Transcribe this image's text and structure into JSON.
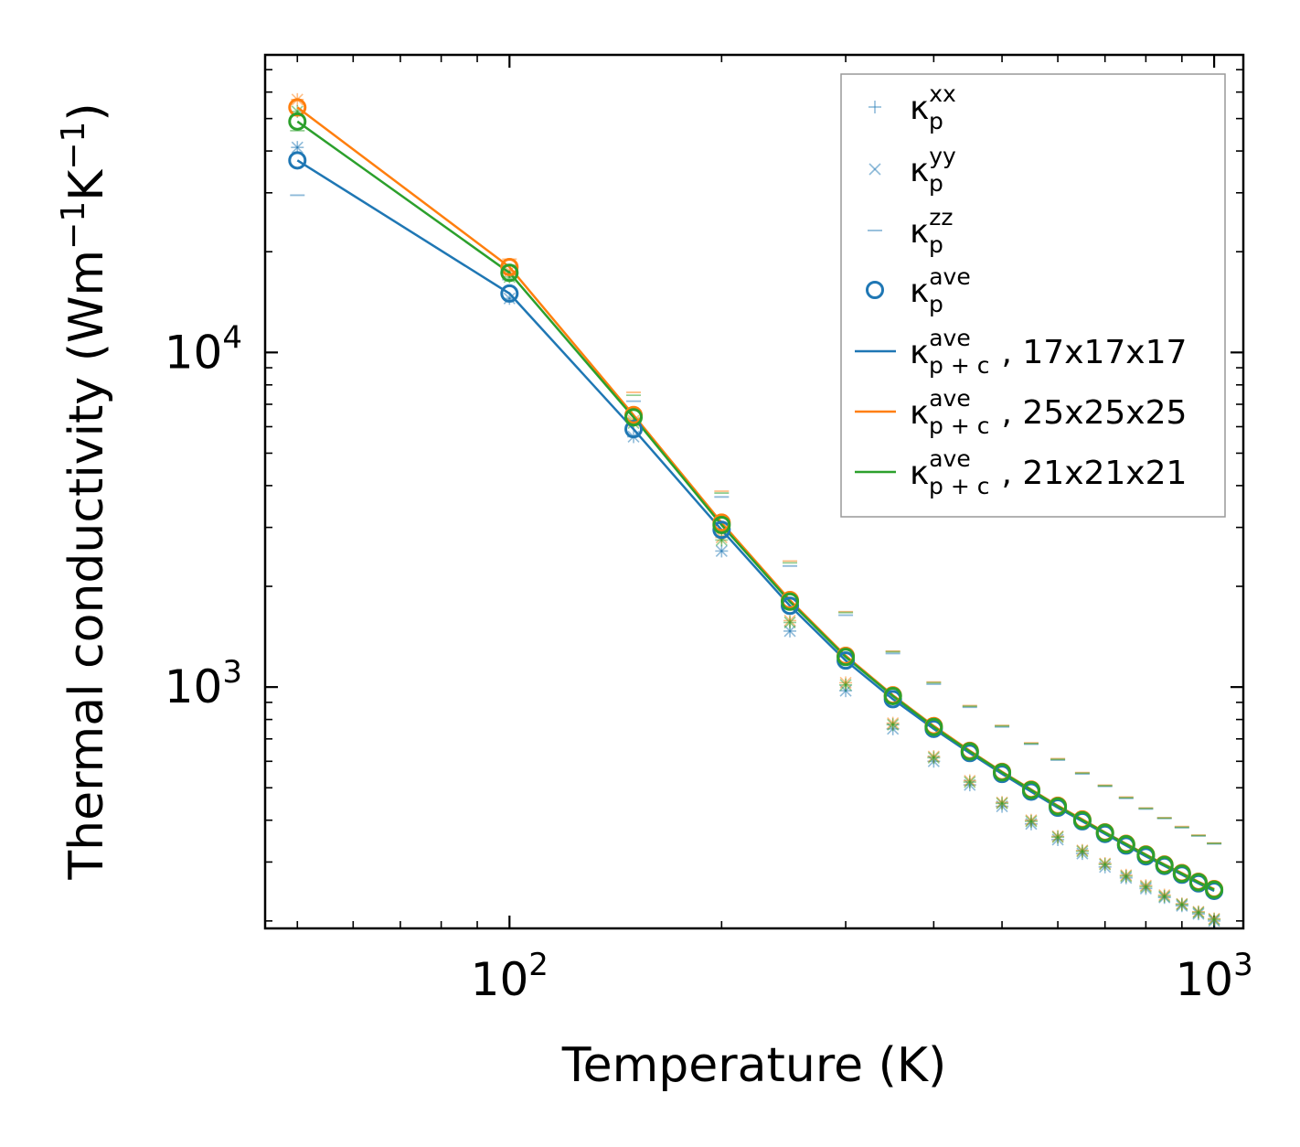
{
  "chart_data": {
    "type": "line",
    "xscale": "log",
    "yscale": "log",
    "xlim": [
      45,
      1100
    ],
    "ylim": [
      190,
      77500
    ],
    "xlabel": "Temperature (K)",
    "ylabel_main": "Thermal conductivity (Wm",
    "ylabel_sup1": "−1",
    "ylabel_mid": "K",
    "ylabel_sup2": "−1",
    "ylabel_end": ")",
    "x_ticks": [
      {
        "value": 100,
        "base": "10",
        "exp": "2"
      },
      {
        "value": 1000,
        "base": "10",
        "exp": "3"
      }
    ],
    "y_ticks": [
      {
        "value": 1000,
        "base": "10",
        "exp": "3"
      },
      {
        "value": 10000,
        "base": "10",
        "exp": "4"
      }
    ],
    "x": [
      50,
      100,
      150,
      200,
      250,
      300,
      350,
      400,
      450,
      500,
      550,
      600,
      650,
      700,
      750,
      800,
      850,
      900,
      950,
      1000
    ],
    "series": [
      {
        "name": "17x17x17",
        "color": "#1f77b4",
        "ave": [
          37500,
          15000,
          5900,
          2950,
          1750,
          1200,
          920,
          750,
          635,
          550,
          487,
          436,
          397,
          364,
          336,
          312,
          292,
          275,
          259,
          246
        ],
        "xx": [
          41000,
          14500,
          5600,
          2550,
          1470,
          975,
          750,
          600,
          510,
          440,
          390,
          350,
          318,
          290,
          269,
          250,
          235,
          222,
          210,
          200
        ],
        "yy": [
          41000,
          14500,
          5600,
          2550,
          1470,
          975,
          750,
          600,
          510,
          440,
          390,
          350,
          318,
          290,
          269,
          250,
          235,
          222,
          210,
          200
        ],
        "zz": [
          29500,
          16500,
          7150,
          3700,
          2300,
          1640,
          1260,
          1020,
          870,
          760,
          675,
          605,
          550,
          505,
          465,
          432,
          405,
          380,
          359,
          340
        ]
      },
      {
        "name": "25x25x25",
        "color": "#ff7f0e",
        "ave": [
          54000,
          18000,
          6500,
          3100,
          1820,
          1240,
          945,
          765,
          645,
          558,
          494,
          442,
          402,
          368,
          340,
          316,
          295,
          278,
          262,
          249
        ],
        "xx": [
          57000,
          17500,
          6250,
          2800,
          1580,
          1030,
          780,
          620,
          525,
          452,
          400,
          358,
          325,
          297,
          274,
          255,
          239,
          225,
          213,
          203
        ],
        "yy": [
          57000,
          17500,
          6250,
          2800,
          1580,
          1030,
          780,
          620,
          525,
          452,
          400,
          358,
          325,
          297,
          274,
          255,
          239,
          225,
          213,
          203
        ],
        "zz": [
          51000,
          19000,
          7600,
          3850,
          2380,
          1680,
          1280,
          1035,
          880,
          768,
          681,
          611,
          555,
          509,
          469,
          435,
          407,
          383,
          361,
          342
        ]
      },
      {
        "name": "21x21x21",
        "color": "#2ca02c",
        "ave": [
          49000,
          17300,
          6400,
          3050,
          1800,
          1230,
          940,
          760,
          642,
          556,
          492,
          440,
          400,
          367,
          339,
          315,
          294,
          277,
          261,
          248
        ],
        "xx": [
          52500,
          16800,
          6150,
          2750,
          1560,
          1015,
          772,
          615,
          520,
          449,
          397,
          356,
          323,
          295,
          272,
          253,
          237,
          224,
          212,
          202
        ],
        "yy": [
          52500,
          16800,
          6150,
          2750,
          1560,
          1015,
          772,
          615,
          520,
          449,
          397,
          356,
          323,
          295,
          272,
          253,
          237,
          224,
          212,
          202
        ],
        "zz": [
          46000,
          18200,
          7450,
          3800,
          2350,
          1670,
          1275,
          1030,
          876,
          765,
          678,
          608,
          553,
          507,
          467,
          434,
          406,
          381,
          360,
          341
        ]
      }
    ],
    "legend": {
      "position": "upper right",
      "entries": [
        {
          "kind": "plus",
          "color": "#1f77b4",
          "base": "κ",
          "sub": "p",
          "sup": "xx",
          "suffix": ""
        },
        {
          "kind": "cross",
          "color": "#1f77b4",
          "base": "κ",
          "sub": "p",
          "sup": "yy",
          "suffix": ""
        },
        {
          "kind": "dash",
          "color": "#1f77b4",
          "base": "κ",
          "sub": "p",
          "sup": "zz",
          "suffix": ""
        },
        {
          "kind": "circle",
          "color": "#1f77b4",
          "base": "κ",
          "sub": "p",
          "sup": "ave",
          "suffix": ""
        },
        {
          "kind": "line",
          "color": "#1f77b4",
          "base": "κ",
          "sub": "p + c",
          "sup": "ave",
          "suffix": ", 17x17x17"
        },
        {
          "kind": "line",
          "color": "#ff7f0e",
          "base": "κ",
          "sub": "p + c",
          "sup": "ave",
          "suffix": ", 25x25x25"
        },
        {
          "kind": "line",
          "color": "#2ca02c",
          "base": "κ",
          "sub": "p + c",
          "sup": "ave",
          "suffix": ", 21x21x21"
        }
      ]
    }
  }
}
